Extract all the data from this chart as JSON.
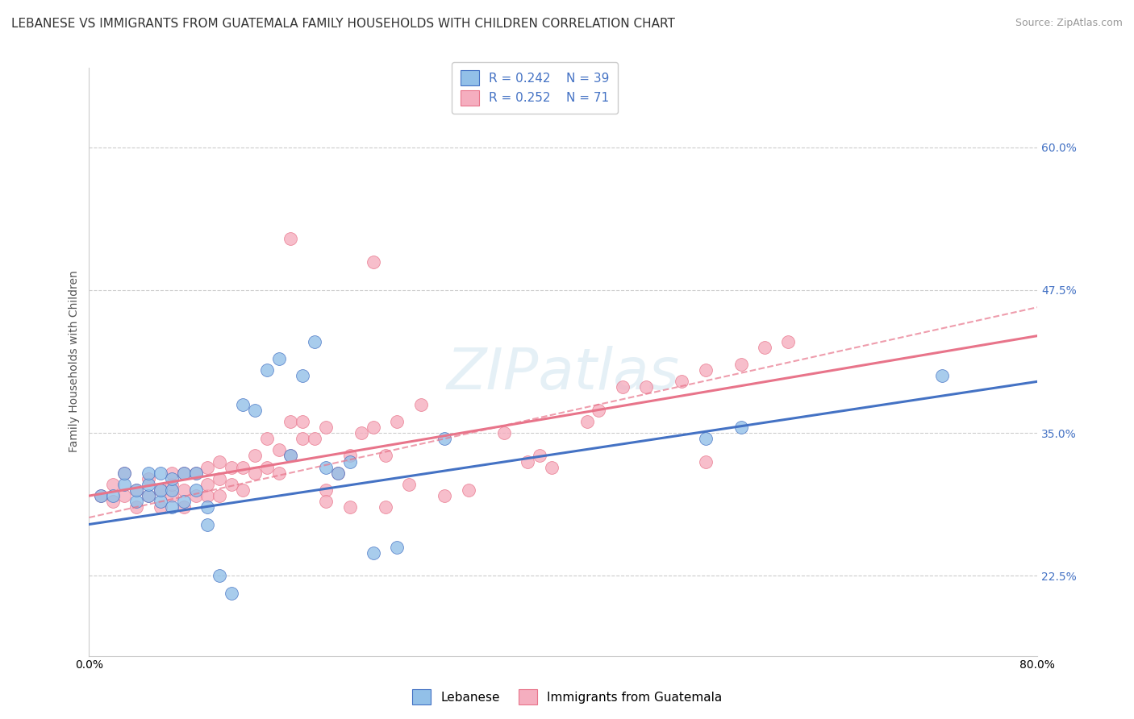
{
  "title": "LEBANESE VS IMMIGRANTS FROM GUATEMALA FAMILY HOUSEHOLDS WITH CHILDREN CORRELATION CHART",
  "source": "Source: ZipAtlas.com",
  "ylabel": "Family Households with Children",
  "ytick_positions": [
    0.225,
    0.35,
    0.475,
    0.6
  ],
  "xlim": [
    0.0,
    0.8
  ],
  "ylim": [
    0.155,
    0.67
  ],
  "legend_r1": "R = 0.242",
  "legend_n1": "N = 39",
  "legend_r2": "R = 0.252",
  "legend_n2": "N = 71",
  "color_blue": "#92C0E8",
  "color_pink": "#F5AEBF",
  "line_color_blue": "#4472C4",
  "line_color_pink": "#E8748A",
  "line_color_dashed": "#E8748A",
  "background_color": "#FFFFFF",
  "title_fontsize": 11,
  "axis_label_fontsize": 10,
  "tick_label_fontsize": 10,
  "legend_fontsize": 11,
  "blue_x": [
    0.01,
    0.02,
    0.03,
    0.03,
    0.04,
    0.04,
    0.05,
    0.05,
    0.05,
    0.06,
    0.06,
    0.06,
    0.07,
    0.07,
    0.07,
    0.08,
    0.08,
    0.09,
    0.09,
    0.1,
    0.1,
    0.11,
    0.12,
    0.13,
    0.14,
    0.15,
    0.16,
    0.17,
    0.18,
    0.19,
    0.2,
    0.21,
    0.22,
    0.24,
    0.26,
    0.3,
    0.52,
    0.55,
    0.72
  ],
  "blue_y": [
    0.295,
    0.295,
    0.305,
    0.315,
    0.29,
    0.3,
    0.295,
    0.305,
    0.315,
    0.29,
    0.3,
    0.315,
    0.285,
    0.3,
    0.31,
    0.29,
    0.315,
    0.3,
    0.315,
    0.285,
    0.27,
    0.225,
    0.21,
    0.375,
    0.37,
    0.405,
    0.415,
    0.33,
    0.4,
    0.43,
    0.32,
    0.315,
    0.325,
    0.245,
    0.25,
    0.345,
    0.345,
    0.355,
    0.4
  ],
  "pink_x": [
    0.01,
    0.02,
    0.02,
    0.03,
    0.03,
    0.04,
    0.04,
    0.05,
    0.05,
    0.06,
    0.06,
    0.07,
    0.07,
    0.07,
    0.08,
    0.08,
    0.08,
    0.09,
    0.09,
    0.1,
    0.1,
    0.1,
    0.11,
    0.11,
    0.11,
    0.12,
    0.12,
    0.13,
    0.13,
    0.14,
    0.14,
    0.15,
    0.15,
    0.16,
    0.16,
    0.17,
    0.17,
    0.18,
    0.18,
    0.19,
    0.2,
    0.2,
    0.21,
    0.22,
    0.23,
    0.24,
    0.25,
    0.26,
    0.28,
    0.3,
    0.32,
    0.35,
    0.37,
    0.39,
    0.42,
    0.43,
    0.45,
    0.47,
    0.5,
    0.52,
    0.55,
    0.57,
    0.59,
    0.22,
    0.25,
    0.27,
    0.24,
    0.17,
    0.2,
    0.38,
    0.52
  ],
  "pink_y": [
    0.295,
    0.29,
    0.305,
    0.295,
    0.315,
    0.285,
    0.3,
    0.295,
    0.31,
    0.285,
    0.3,
    0.295,
    0.305,
    0.315,
    0.285,
    0.3,
    0.315,
    0.295,
    0.315,
    0.295,
    0.305,
    0.32,
    0.295,
    0.31,
    0.325,
    0.305,
    0.32,
    0.3,
    0.32,
    0.315,
    0.33,
    0.32,
    0.345,
    0.315,
    0.335,
    0.33,
    0.36,
    0.345,
    0.36,
    0.345,
    0.3,
    0.29,
    0.315,
    0.33,
    0.35,
    0.355,
    0.33,
    0.36,
    0.375,
    0.295,
    0.3,
    0.35,
    0.325,
    0.32,
    0.36,
    0.37,
    0.39,
    0.39,
    0.395,
    0.405,
    0.41,
    0.425,
    0.43,
    0.285,
    0.285,
    0.305,
    0.5,
    0.52,
    0.355,
    0.33,
    0.325
  ],
  "blue_line_x0": 0.0,
  "blue_line_y0": 0.27,
  "blue_line_x1": 0.8,
  "blue_line_y1": 0.395,
  "pink_line_x0": 0.0,
  "pink_line_y0": 0.295,
  "pink_line_x1": 0.8,
  "pink_line_y1": 0.435,
  "dashed_line_x0": 0.3,
  "dashed_line_y0": 0.345,
  "dashed_line_x1": 0.8,
  "dashed_line_y1": 0.46
}
